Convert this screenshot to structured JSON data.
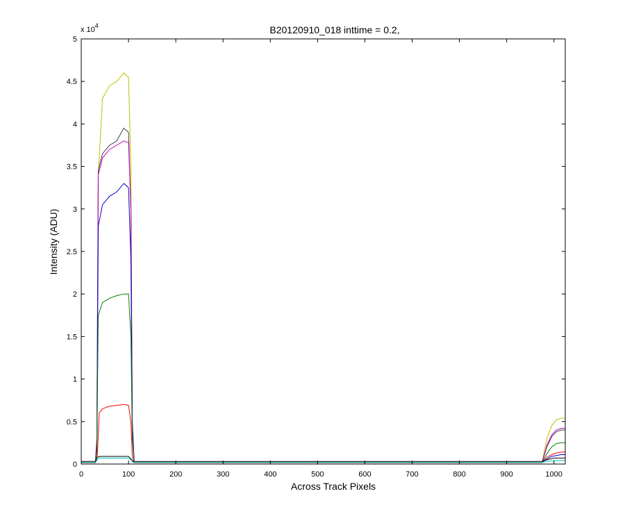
{
  "chart_data": {
    "type": "line",
    "title": "B20120910_018 inttime = 0.2,",
    "xlabel": "Across Track Pixels",
    "ylabel": "Intensity (ADU)",
    "y_exponent_label": "x 10",
    "y_exponent_power": "4",
    "xlim": [
      0,
      1024
    ],
    "ylim": [
      0,
      5
    ],
    "xticks": [
      0,
      100,
      200,
      300,
      400,
      500,
      600,
      700,
      800,
      900,
      1000
    ],
    "yticks": [
      0,
      0.5,
      1,
      1.5,
      2,
      2.5,
      3,
      3.5,
      4,
      4.5,
      5
    ],
    "ytick_labels": [
      "0",
      "0.5",
      "1",
      "1.5",
      "2",
      "2.5",
      "3",
      "3.5",
      "4",
      "4.5",
      "5"
    ],
    "grid": false,
    "legend": "none",
    "series": [
      {
        "color": "#bfbf00",
        "values": [
          [
            0,
            0.02
          ],
          [
            30,
            0.02
          ],
          [
            33,
            0.3
          ],
          [
            36,
            3.4
          ],
          [
            45,
            4.3
          ],
          [
            60,
            4.45
          ],
          [
            75,
            4.5
          ],
          [
            90,
            4.6
          ],
          [
            100,
            4.55
          ],
          [
            105,
            3.5
          ],
          [
            108,
            0.5
          ],
          [
            112,
            0.02
          ],
          [
            975,
            0.02
          ],
          [
            985,
            0.3
          ],
          [
            995,
            0.45
          ],
          [
            1005,
            0.52
          ],
          [
            1015,
            0.54
          ],
          [
            1024,
            0.54
          ]
        ]
      },
      {
        "color": "#404040",
        "values": [
          [
            0,
            0.02
          ],
          [
            30,
            0.02
          ],
          [
            33,
            0.3
          ],
          [
            36,
            3.45
          ],
          [
            45,
            3.65
          ],
          [
            60,
            3.75
          ],
          [
            75,
            3.8
          ],
          [
            90,
            3.95
          ],
          [
            100,
            3.9
          ],
          [
            105,
            3.0
          ],
          [
            108,
            0.5
          ],
          [
            112,
            0.02
          ],
          [
            975,
            0.02
          ],
          [
            985,
            0.2
          ],
          [
            995,
            0.32
          ],
          [
            1005,
            0.38
          ],
          [
            1015,
            0.4
          ],
          [
            1024,
            0.4
          ]
        ]
      },
      {
        "color": "#bf00bf",
        "values": [
          [
            0,
            0.02
          ],
          [
            30,
            0.02
          ],
          [
            33,
            0.3
          ],
          [
            36,
            3.4
          ],
          [
            45,
            3.6
          ],
          [
            60,
            3.7
          ],
          [
            75,
            3.75
          ],
          [
            90,
            3.8
          ],
          [
            100,
            3.78
          ],
          [
            105,
            3.0
          ],
          [
            108,
            0.5
          ],
          [
            112,
            0.02
          ],
          [
            975,
            0.02
          ],
          [
            985,
            0.22
          ],
          [
            995,
            0.34
          ],
          [
            1005,
            0.4
          ],
          [
            1015,
            0.42
          ],
          [
            1024,
            0.42
          ]
        ]
      },
      {
        "color": "#0000bf",
        "values": [
          [
            0,
            0.02
          ],
          [
            30,
            0.02
          ],
          [
            33,
            0.2
          ],
          [
            36,
            2.8
          ],
          [
            45,
            3.05
          ],
          [
            60,
            3.15
          ],
          [
            75,
            3.2
          ],
          [
            90,
            3.3
          ],
          [
            100,
            3.25
          ],
          [
            105,
            2.4
          ],
          [
            108,
            0.4
          ],
          [
            112,
            0.02
          ],
          [
            975,
            0.02
          ],
          [
            985,
            0.06
          ],
          [
            995,
            0.09
          ],
          [
            1005,
            0.1
          ],
          [
            1015,
            0.11
          ],
          [
            1024,
            0.11
          ]
        ]
      },
      {
        "color": "#008000",
        "values": [
          [
            0,
            0.02
          ],
          [
            30,
            0.02
          ],
          [
            33,
            0.15
          ],
          [
            36,
            1.75
          ],
          [
            45,
            1.9
          ],
          [
            60,
            1.95
          ],
          [
            75,
            1.98
          ],
          [
            90,
            2.0
          ],
          [
            100,
            2.0
          ],
          [
            105,
            1.5
          ],
          [
            108,
            0.3
          ],
          [
            112,
            0.02
          ],
          [
            975,
            0.02
          ],
          [
            985,
            0.12
          ],
          [
            995,
            0.2
          ],
          [
            1005,
            0.24
          ],
          [
            1015,
            0.25
          ],
          [
            1024,
            0.25
          ]
        ]
      },
      {
        "color": "#ff0000",
        "values": [
          [
            0,
            0.02
          ],
          [
            30,
            0.02
          ],
          [
            34,
            0.1
          ],
          [
            38,
            0.6
          ],
          [
            45,
            0.65
          ],
          [
            60,
            0.68
          ],
          [
            75,
            0.69
          ],
          [
            90,
            0.7
          ],
          [
            100,
            0.69
          ],
          [
            105,
            0.5
          ],
          [
            108,
            0.1
          ],
          [
            112,
            0.02
          ],
          [
            975,
            0.02
          ],
          [
            985,
            0.08
          ],
          [
            995,
            0.11
          ],
          [
            1005,
            0.13
          ],
          [
            1015,
            0.14
          ],
          [
            1024,
            0.14
          ]
        ]
      },
      {
        "color": "#00bfbf",
        "values": [
          [
            0,
            0.02
          ],
          [
            30,
            0.02
          ],
          [
            34,
            0.05
          ],
          [
            38,
            0.07
          ],
          [
            60,
            0.07
          ],
          [
            90,
            0.07
          ],
          [
            100,
            0.07
          ],
          [
            105,
            0.05
          ],
          [
            110,
            0.02
          ],
          [
            975,
            0.02
          ],
          [
            985,
            0.03
          ],
          [
            1000,
            0.04
          ],
          [
            1024,
            0.04
          ]
        ]
      },
      {
        "color": "#000000",
        "values": [
          [
            0,
            0.03
          ],
          [
            30,
            0.03
          ],
          [
            34,
            0.08
          ],
          [
            40,
            0.09
          ],
          [
            60,
            0.09
          ],
          [
            90,
            0.09
          ],
          [
            100,
            0.09
          ],
          [
            105,
            0.06
          ],
          [
            110,
            0.03
          ],
          [
            975,
            0.03
          ],
          [
            985,
            0.05
          ],
          [
            1000,
            0.07
          ],
          [
            1024,
            0.07
          ]
        ]
      }
    ]
  }
}
